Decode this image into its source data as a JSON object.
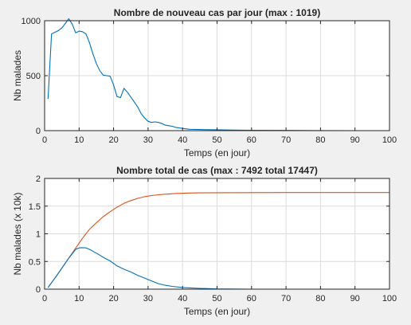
{
  "chart_data": [
    {
      "type": "line",
      "title": "Nombre de nouveau cas par jour (max : 1019)",
      "xlabel": "Temps (en jour)",
      "ylabel": "Nb malades",
      "xlim": [
        0,
        100
      ],
      "ylim": [
        0,
        1000
      ],
      "xticks": [
        0,
        10,
        20,
        30,
        40,
        50,
        60,
        70,
        80,
        90,
        100
      ],
      "yticks": [
        0,
        500,
        1000
      ],
      "grid": true,
      "series": [
        {
          "color": "#0072BD",
          "x": [
            1,
            2,
            3,
            4,
            5,
            6,
            7,
            8,
            9,
            10,
            11,
            12,
            13,
            14,
            15,
            16,
            17,
            18,
            19,
            20,
            21,
            22,
            23,
            24,
            25,
            26,
            27,
            28,
            29,
            30,
            31,
            32,
            33,
            34,
            35,
            36,
            37,
            38,
            39,
            40,
            42,
            45,
            50,
            55,
            60,
            70,
            80,
            90,
            100
          ],
          "y": [
            290,
            880,
            895,
            910,
            935,
            975,
            1019,
            970,
            890,
            905,
            900,
            880,
            800,
            700,
            610,
            545,
            505,
            500,
            495,
            415,
            310,
            300,
            385,
            350,
            305,
            260,
            215,
            155,
            115,
            85,
            75,
            80,
            75,
            65,
            50,
            45,
            40,
            30,
            25,
            20,
            12,
            10,
            8,
            5,
            3,
            2,
            1,
            0,
            0
          ]
        }
      ]
    },
    {
      "type": "line",
      "title": "Nombre total de cas (max : 7492 total 17447)",
      "xlabel": "Temps (en jour)",
      "ylabel": "Nb malades (x 10k)",
      "xlim": [
        0,
        100
      ],
      "ylim": [
        0,
        2
      ],
      "xticks": [
        0,
        10,
        20,
        30,
        40,
        50,
        60,
        70,
        80,
        90,
        100
      ],
      "yticks": [
        0,
        0.5,
        1,
        1.5,
        2
      ],
      "yticklabels": [
        "0",
        "0.5",
        "1",
        "1.5",
        "2"
      ],
      "grid": true,
      "series": [
        {
          "color": "#D95319",
          "x": [
            1,
            3,
            5,
            7,
            9,
            11,
            13,
            15,
            17,
            19,
            21,
            23,
            25,
            27,
            29,
            31,
            33,
            35,
            38,
            41,
            45,
            50,
            60,
            70,
            80,
            90,
            100
          ],
          "y": [
            0.03,
            0.2,
            0.38,
            0.56,
            0.74,
            0.92,
            1.08,
            1.2,
            1.31,
            1.4,
            1.48,
            1.55,
            1.6,
            1.64,
            1.67,
            1.69,
            1.705,
            1.715,
            1.728,
            1.735,
            1.74,
            1.743,
            1.744,
            1.745,
            1.745,
            1.745,
            1.745
          ]
        },
        {
          "color": "#0072BD",
          "x": [
            1,
            3,
            5,
            7,
            9,
            10,
            11,
            12,
            13,
            15,
            17,
            19,
            21,
            23,
            25,
            27,
            29,
            31,
            33,
            35,
            37,
            40,
            45,
            50,
            60,
            70,
            80,
            90,
            100
          ],
          "y": [
            0.03,
            0.2,
            0.38,
            0.56,
            0.72,
            0.745,
            0.749,
            0.745,
            0.72,
            0.65,
            0.575,
            0.51,
            0.42,
            0.36,
            0.31,
            0.25,
            0.2,
            0.15,
            0.1,
            0.07,
            0.05,
            0.03,
            0.015,
            0.005,
            0,
            0,
            0,
            0,
            0
          ]
        }
      ]
    }
  ]
}
